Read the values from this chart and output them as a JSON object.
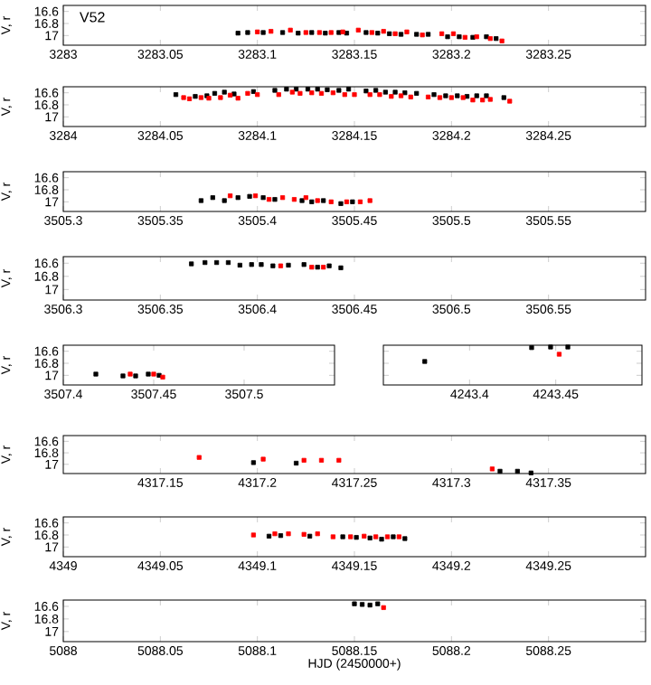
{
  "chart_data": [
    {
      "type": "scatter",
      "ylabel": "V, r",
      "annotations": [
        "V52"
      ],
      "marker": "square",
      "xlim": [
        3283,
        3283.3
      ],
      "xticks": [
        3283,
        3283.05,
        3283.1,
        3283.15,
        3283.2,
        3283.25
      ],
      "ylim": [
        17.16,
        16.5
      ],
      "yticks": [
        16.6,
        16.8,
        17
      ],
      "series": [
        {
          "color": "#000000",
          "x": [
            3283.09,
            3283.095,
            3283.103,
            3283.113,
            3283.121,
            3283.128,
            3283.135,
            3283.142,
            3283.146,
            3283.156,
            3283.162,
            3283.168,
            3283.174,
            3283.182,
            3283.188,
            3283.198,
            3283.204,
            3283.211,
            3283.218,
            3283.223
          ],
          "values": [
            16.96,
            16.95,
            16.95,
            16.95,
            16.96,
            16.95,
            16.96,
            16.95,
            16.96,
            16.95,
            16.96,
            16.97,
            16.98,
            16.98,
            16.98,
            17.02,
            17.02,
            17.03,
            17.02,
            17.05
          ]
        },
        {
          "color": "#ff0000",
          "x": [
            3283.1,
            3283.107,
            3283.117,
            3283.125,
            3283.132,
            3283.138,
            3283.144,
            3283.152,
            3283.159,
            3283.165,
            3283.171,
            3283.177,
            3283.185,
            3283.195,
            3283.201,
            3283.207,
            3283.213,
            3283.22,
            3283.226
          ],
          "values": [
            16.94,
            16.93,
            16.91,
            16.95,
            16.95,
            16.95,
            16.94,
            16.91,
            16.95,
            16.93,
            16.97,
            16.94,
            16.99,
            16.97,
            16.97,
            17.03,
            17.02,
            17.05,
            17.09
          ]
        }
      ]
    },
    {
      "type": "scatter",
      "ylabel": "V, r",
      "marker": "square",
      "xlim": [
        3284,
        3284.3
      ],
      "xticks": [
        3284,
        3284.05,
        3284.1,
        3284.15,
        3284.2,
        3284.25
      ],
      "ylim": [
        17.16,
        16.5
      ],
      "yticks": [
        16.6,
        16.8,
        17
      ],
      "series": [
        {
          "color": "#000000",
          "x": [
            3284.058,
            3284.068,
            3284.074,
            3284.078,
            3284.083,
            3284.088,
            3284.098,
            3284.109,
            3284.115,
            3284.12,
            3284.126,
            3284.131,
            3284.136,
            3284.142,
            3284.147,
            3284.156,
            3284.161,
            3284.166,
            3284.171,
            3284.176,
            3284.182,
            3284.191,
            3284.197,
            3284.203,
            3284.208,
            3284.213,
            3284.218,
            3284.227
          ],
          "values": [
            16.63,
            16.66,
            16.65,
            16.61,
            16.59,
            16.62,
            16.58,
            16.56,
            16.54,
            16.54,
            16.54,
            16.54,
            16.55,
            16.56,
            16.54,
            16.57,
            16.56,
            16.59,
            16.59,
            16.6,
            16.61,
            16.63,
            16.65,
            16.65,
            16.66,
            16.65,
            16.65,
            16.68
          ]
        },
        {
          "color": "#ff0000",
          "x": [
            3284.062,
            3284.065,
            3284.071,
            3284.075,
            3284.081,
            3284.086,
            3284.09,
            3284.095,
            3284.1,
            3284.111,
            3284.118,
            3284.122,
            3284.128,
            3284.133,
            3284.139,
            3284.145,
            3284.15,
            3284.158,
            3284.163,
            3284.169,
            3284.174,
            3284.179,
            3284.188,
            3284.194,
            3284.2,
            3284.206,
            3284.211,
            3284.216,
            3284.22,
            3284.23
          ],
          "values": [
            16.68,
            16.7,
            16.68,
            16.69,
            16.68,
            16.64,
            16.69,
            16.61,
            16.63,
            16.63,
            16.59,
            16.61,
            16.6,
            16.61,
            16.6,
            16.63,
            16.63,
            16.63,
            16.63,
            16.66,
            16.65,
            16.67,
            16.67,
            16.68,
            16.68,
            16.68,
            16.72,
            16.72,
            16.71,
            16.74
          ]
        }
      ]
    },
    {
      "type": "scatter",
      "ylabel": "V, r",
      "marker": "square",
      "xlim": [
        3505.3,
        3505.6
      ],
      "xticks": [
        3505.3,
        3505.35,
        3505.4,
        3505.45,
        3505.5,
        3505.55
      ],
      "ylim": [
        17.16,
        16.5
      ],
      "yticks": [
        16.6,
        16.8,
        17
      ],
      "series": [
        {
          "color": "#000000",
          "x": [
            3505.371,
            3505.377,
            3505.383,
            3505.39,
            3505.396,
            3505.403,
            3505.409,
            3505.423,
            3505.428,
            3505.434,
            3505.443,
            3505.449
          ],
          "values": [
            16.98,
            16.93,
            16.98,
            16.93,
            16.91,
            16.93,
            16.96,
            16.98,
            17.0,
            16.98,
            17.03,
            17.0
          ]
        },
        {
          "color": "#ff0000",
          "x": [
            3505.386,
            3505.399,
            3505.406,
            3505.413,
            3505.419,
            3505.425,
            3505.431,
            3505.438,
            3505.446,
            3505.453,
            3505.458
          ],
          "values": [
            16.9,
            16.9,
            16.96,
            16.93,
            16.96,
            16.93,
            16.98,
            17.0,
            17.0,
            17.0,
            16.98
          ]
        }
      ]
    },
    {
      "type": "scatter",
      "ylabel": "V, r",
      "marker": "square",
      "xlim": [
        3506.3,
        3506.6
      ],
      "xticks": [
        3506.3,
        3506.35,
        3506.4,
        3506.45,
        3506.5,
        3506.55
      ],
      "ylim": [
        17.16,
        16.5
      ],
      "yticks": [
        16.6,
        16.8,
        17
      ],
      "series": [
        {
          "color": "#000000",
          "x": [
            3506.366,
            3506.373,
            3506.379,
            3506.385,
            3506.391,
            3506.397,
            3506.402,
            3506.408,
            3506.416,
            3506.424,
            3506.431,
            3506.437,
            3506.443
          ],
          "values": [
            16.61,
            16.59,
            16.59,
            16.59,
            16.63,
            16.62,
            16.62,
            16.64,
            16.63,
            16.62,
            16.66,
            16.64,
            16.67
          ]
        },
        {
          "color": "#ff0000",
          "x": [
            3506.412,
            3506.428,
            3506.434
          ],
          "values": [
            16.64,
            16.66,
            16.66
          ]
        }
      ]
    },
    {
      "type": "scatter",
      "ylabel": "V, r",
      "marker": "square",
      "xlim": [
        3507.4,
        3507.55
      ],
      "xticks": [
        3507.4,
        3507.45,
        3507.5
      ],
      "ylim": [
        17.16,
        16.5
      ],
      "yticks": [
        16.6,
        16.8,
        17
      ],
      "series": [
        {
          "color": "#000000",
          "x": [
            3507.418,
            3507.433,
            3507.44,
            3507.447,
            3507.453
          ],
          "values": [
            16.98,
            17.01,
            17.01,
            16.98,
            17.0
          ]
        },
        {
          "color": "#ff0000",
          "x": [
            3507.437,
            3507.45,
            3507.455
          ],
          "values": [
            16.98,
            16.98,
            17.03
          ]
        }
      ]
    },
    {
      "type": "scatter",
      "marker": "square",
      "tick_labels": "x",
      "xlim": [
        4243.35,
        4243.5
      ],
      "xticks": [
        4243.4,
        4243.45
      ],
      "ylim": [
        17.16,
        16.5
      ],
      "yticks": [
        16.6,
        16.8,
        17
      ],
      "series": [
        {
          "color": "#000000",
          "x": [
            4243.374,
            4243.436,
            4243.447,
            4243.457
          ],
          "values": [
            16.77,
            16.54,
            16.53,
            16.53
          ]
        },
        {
          "color": "#ff0000",
          "x": [
            4243.452
          ],
          "values": [
            16.65
          ]
        }
      ]
    },
    {
      "type": "scatter",
      "ylabel": "V, r",
      "marker": "square",
      "xlim": [
        4317.1,
        4317.4
      ],
      "xticks": [
        4317.15,
        4317.2,
        4317.25,
        4317.3,
        4317.35
      ],
      "ylim": [
        17.16,
        16.5
      ],
      "yticks": [
        16.6,
        16.8,
        17
      ],
      "series": [
        {
          "color": "#000000",
          "x": [
            4317.198,
            4317.22,
            4317.325,
            4317.334,
            4317.341
          ],
          "values": [
            16.97,
            16.98,
            17.12,
            17.12,
            17.15
          ]
        },
        {
          "color": "#ff0000",
          "x": [
            4317.17,
            4317.203,
            4317.224,
            4317.233,
            4317.242,
            4317.321
          ],
          "values": [
            16.88,
            16.91,
            16.93,
            16.93,
            16.93,
            17.08
          ]
        }
      ]
    },
    {
      "type": "scatter",
      "ylabel": "V, r",
      "marker": "square",
      "xlim": [
        4349,
        4349.3
      ],
      "xticks": [
        4349,
        4349.05,
        4349.1,
        4349.15,
        4349.2,
        4349.25
      ],
      "ylim": [
        17.16,
        16.5
      ],
      "yticks": [
        16.6,
        16.8,
        17
      ],
      "series": [
        {
          "color": "#000000",
          "x": [
            4349.106,
            4349.112,
            4349.127,
            4349.144,
            4349.151,
            4349.158,
            4349.164,
            4349.17,
            4349.176
          ],
          "values": [
            16.82,
            16.81,
            16.82,
            16.83,
            16.84,
            16.85,
            16.87,
            16.83,
            16.86
          ]
        },
        {
          "color": "#ff0000",
          "x": [
            4349.098,
            4349.109,
            4349.116,
            4349.124,
            4349.131,
            4349.139,
            4349.148,
            4349.155,
            4349.161,
            4349.167,
            4349.173
          ],
          "values": [
            16.8,
            16.78,
            16.78,
            16.79,
            16.78,
            16.83,
            16.83,
            16.82,
            16.83,
            16.83,
            16.83
          ]
        }
      ]
    },
    {
      "type": "scatter",
      "ylabel": "V, r",
      "xlabel": "HJD (2450000+)",
      "marker": "square",
      "xlim": [
        5088,
        5088.3
      ],
      "xticks": [
        5088,
        5088.05,
        5088.1,
        5088.15,
        5088.2,
        5088.25
      ],
      "ylim": [
        17.16,
        16.5
      ],
      "yticks": [
        16.6,
        16.8,
        17
      ],
      "series": [
        {
          "color": "#000000",
          "x": [
            5088.15,
            5088.154,
            5088.158,
            5088.162
          ],
          "values": [
            16.56,
            16.57,
            16.58,
            16.56
          ]
        },
        {
          "color": "#ff0000",
          "x": [
            5088.165
          ],
          "values": [
            16.62
          ]
        }
      ]
    }
  ]
}
